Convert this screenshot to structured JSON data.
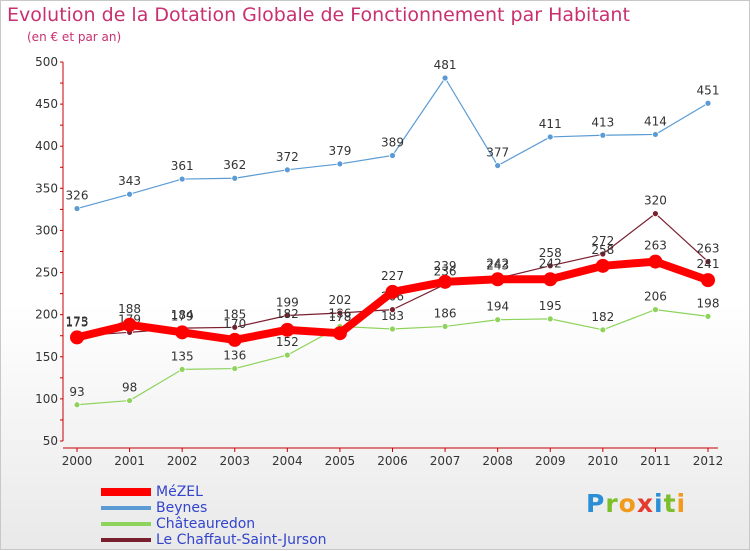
{
  "title": "Evolution de la Dotation Globale de Fonctionnement par Habitant",
  "subtitle": "(en € et par an)",
  "logo": {
    "text": "Proxiti",
    "letters": [
      "P",
      "r",
      "o",
      "x",
      "i",
      "t",
      "i"
    ],
    "colors": [
      "#2a8fd6",
      "#7bbf2a",
      "#f29a1c",
      "#e33b2f",
      "#2a8fd6",
      "#7bbf2a",
      "#f29a1c"
    ]
  },
  "chart_data": {
    "type": "line",
    "title": "Evolution de la Dotation Globale de Fonctionnement par Habitant",
    "subtitle": "(en € et par an)",
    "xlabel": "",
    "ylabel": "",
    "ylim": [
      50,
      500
    ],
    "yticks": [
      50,
      100,
      150,
      200,
      250,
      300,
      350,
      400,
      450,
      500
    ],
    "grid": false,
    "legend_position": "bottom-left",
    "x": [
      "2000",
      "2001",
      "2002",
      "2003",
      "2004",
      "2005",
      "2006",
      "2007",
      "2008",
      "2009",
      "2010",
      "2011",
      "2012"
    ],
    "series": [
      {
        "name": "Beynes",
        "color": "#5b9bd5",
        "values": [
          326,
          343,
          361,
          362,
          372,
          379,
          389,
          481,
          377,
          411,
          413,
          414,
          451
        ]
      },
      {
        "name": "Châteauredon",
        "color": "#8ed35c",
        "values": [
          93,
          98,
          135,
          136,
          152,
          186,
          183,
          186,
          194,
          195,
          182,
          206,
          198
        ]
      },
      {
        "name": "Le Chaffaut-Saint-Jurson",
        "color": "#7a1f2e",
        "values": [
          175,
          179,
          184,
          185,
          199,
          202,
          206,
          236,
          243,
          258,
          272,
          320,
          263
        ]
      },
      {
        "name": "MéZEL",
        "color": "#ff0000",
        "values": [
          173,
          188,
          179,
          170,
          182,
          178,
          227,
          239,
          242,
          242,
          258,
          263,
          241
        ]
      }
    ]
  }
}
